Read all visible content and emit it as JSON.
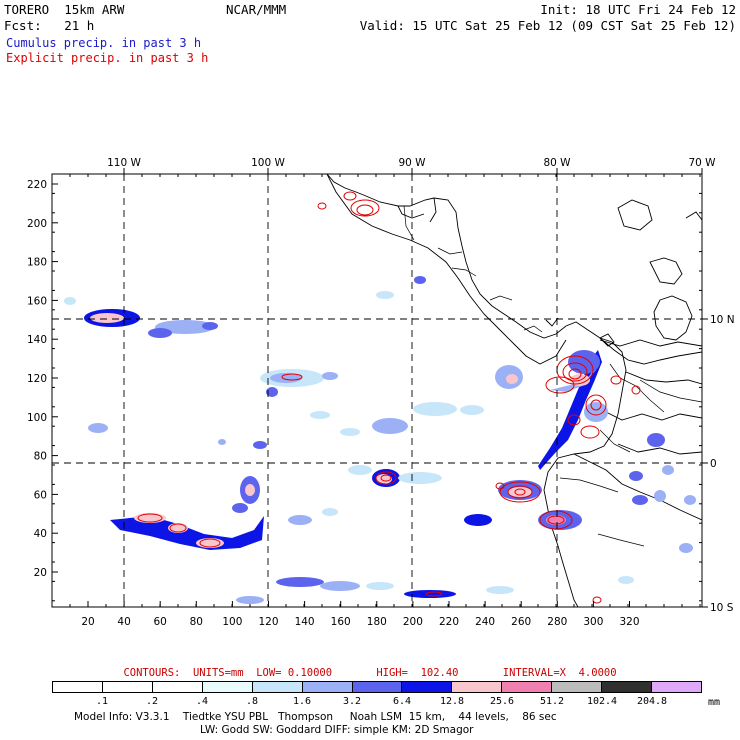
{
  "header": {
    "model": "TORERO  15km ARW",
    "center": "NCAR/MMM",
    "init": "Init: 18 UTC Fri 24 Feb 12",
    "fcst": "Fcst:   21 h",
    "valid": "Valid: 15 UTC Sat 25 Feb 12 (09 CST Sat 25 Feb 12)",
    "field1": "Cumulus precip. in past 3 h",
    "field2": "Explicit precip. in past 3 h",
    "field1_color": "#1a1acc",
    "field2_color": "#e00000"
  },
  "map": {
    "lon_labels": [
      "110 W",
      "100 W",
      "90 W",
      "80 W",
      "70 W"
    ],
    "lat_labels": [
      "10 N",
      "0",
      "10 S"
    ],
    "y_ticks": [
      "20",
      "40",
      "60",
      "80",
      "100",
      "120",
      "140",
      "160",
      "180",
      "200",
      "220"
    ],
    "x_ticks": [
      "20",
      "40",
      "60",
      "80",
      "100",
      "120",
      "140",
      "160",
      "180",
      "200",
      "220",
      "240",
      "260",
      "280",
      "300",
      "320"
    ]
  },
  "contours_line": {
    "label": "CONTOURS:  UNITS=mm  LOW= 0.10000       HIGH=  102.40       INTERVAL=X  4.0000",
    "color": "#cc0000"
  },
  "colorbar": {
    "labels": [
      ".1",
      ".2",
      ".4",
      ".8",
      "1.6",
      "3.2",
      "6.4",
      "12.8",
      "25.6",
      "51.2",
      "102.4",
      "204.8"
    ],
    "unit": "mm",
    "colors": [
      "#ffffff",
      "#ffffff",
      "#ffffff",
      "#e8fcfc",
      "#c8e6fa",
      "#9bb0f5",
      "#5c64ee",
      "#0c14e6",
      "#f8c6cc",
      "#f080b0",
      "#bcbcbc",
      "#303030",
      "#e0a8f8"
    ]
  },
  "footer": {
    "line1": "Model Info: V3.3.1    Tiedtke YSU PBL   Thompson     Noah LSM  15 km,    44 levels,    86 sec",
    "line2": "LW: Godd SW: Goddard DIFF: simple KM: 2D Smagor"
  }
}
